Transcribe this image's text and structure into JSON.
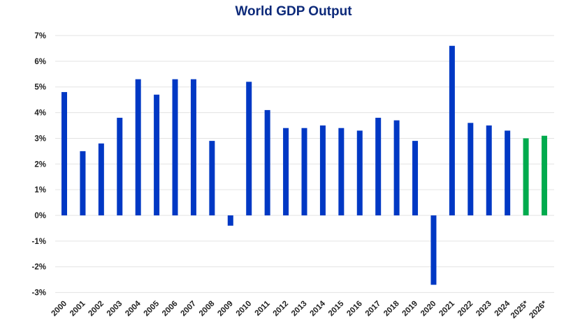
{
  "chart_data": {
    "type": "bar",
    "title": "World GDP Output",
    "xlabel": "",
    "ylabel": "",
    "ylim": [
      -3,
      7
    ],
    "yticks": [
      "7%",
      "6%",
      "5%",
      "4%",
      "3%",
      "2%",
      "1%",
      "0%",
      "-1%",
      "-2%",
      "-3%"
    ],
    "grid": true,
    "categories": [
      "2000",
      "2001",
      "2002",
      "2003",
      "2004",
      "2005",
      "2006",
      "2007",
      "2008",
      "2009",
      "2010",
      "2011",
      "2012",
      "2013",
      "2014",
      "2015",
      "2016",
      "2017",
      "2018",
      "2019",
      "2020",
      "2021",
      "2022",
      "2023",
      "2024",
      "2025*",
      "2026*"
    ],
    "values": [
      4.8,
      2.5,
      2.8,
      3.8,
      5.3,
      4.7,
      5.3,
      5.3,
      2.9,
      -0.4,
      5.2,
      4.1,
      3.4,
      3.4,
      3.5,
      3.4,
      3.3,
      3.8,
      3.7,
      2.9,
      -2.7,
      6.6,
      3.6,
      3.5,
      3.3,
      3.0,
      3.1
    ],
    "colors": {
      "actual": "#0038c4",
      "forecast": "#00ab4e",
      "grid": "#e3e3e3"
    },
    "forecast_categories": [
      "2025*",
      "2026*"
    ]
  }
}
